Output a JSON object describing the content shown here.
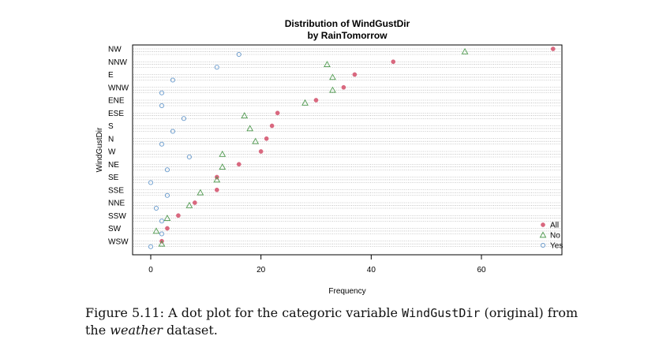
{
  "chart_data": {
    "type": "scatter",
    "title": "Distribution of WindGustDir",
    "subtitle": "by RainTomorrow",
    "xlabel": "Frequency",
    "ylabel": "WindGustDir",
    "xlim": [
      0,
      75
    ],
    "x_ticks": [
      "0",
      "20",
      "40",
      "60"
    ],
    "x_tick_values": [
      0,
      20,
      40,
      60
    ],
    "grid": true,
    "legend_position": "bottom-right",
    "categories": [
      "NW",
      "NNW",
      "E",
      "WNW",
      "ENE",
      "ESE",
      "S",
      "N",
      "W",
      "NE",
      "SE",
      "SSE",
      "NNE",
      "SSW",
      "SW",
      "WSW"
    ],
    "series": [
      {
        "name": "All",
        "marker": "dot",
        "color": "#d9687f",
        "values": [
          73,
          44,
          37,
          35,
          30,
          23,
          22,
          21,
          20,
          16,
          12,
          12,
          8,
          5,
          3,
          2
        ]
      },
      {
        "name": "No",
        "marker": "triangle",
        "color": "#4f9a4f",
        "values": [
          57,
          32,
          33,
          33,
          28,
          17,
          18,
          19,
          13,
          13,
          12,
          9,
          7,
          3,
          1,
          2
        ]
      },
      {
        "name": "Yes",
        "marker": "circle",
        "color": "#6699cc",
        "values": [
          16,
          12,
          4,
          2,
          2,
          6,
          4,
          2,
          7,
          3,
          0,
          3,
          1,
          2,
          2,
          0
        ]
      }
    ]
  },
  "caption": {
    "prefix": "Figure 5.11:  A dot plot for the categoric variable ",
    "code": "WindGustDir",
    "middle": " (original) from the ",
    "emphasis": "weather",
    "suffix": " dataset."
  }
}
